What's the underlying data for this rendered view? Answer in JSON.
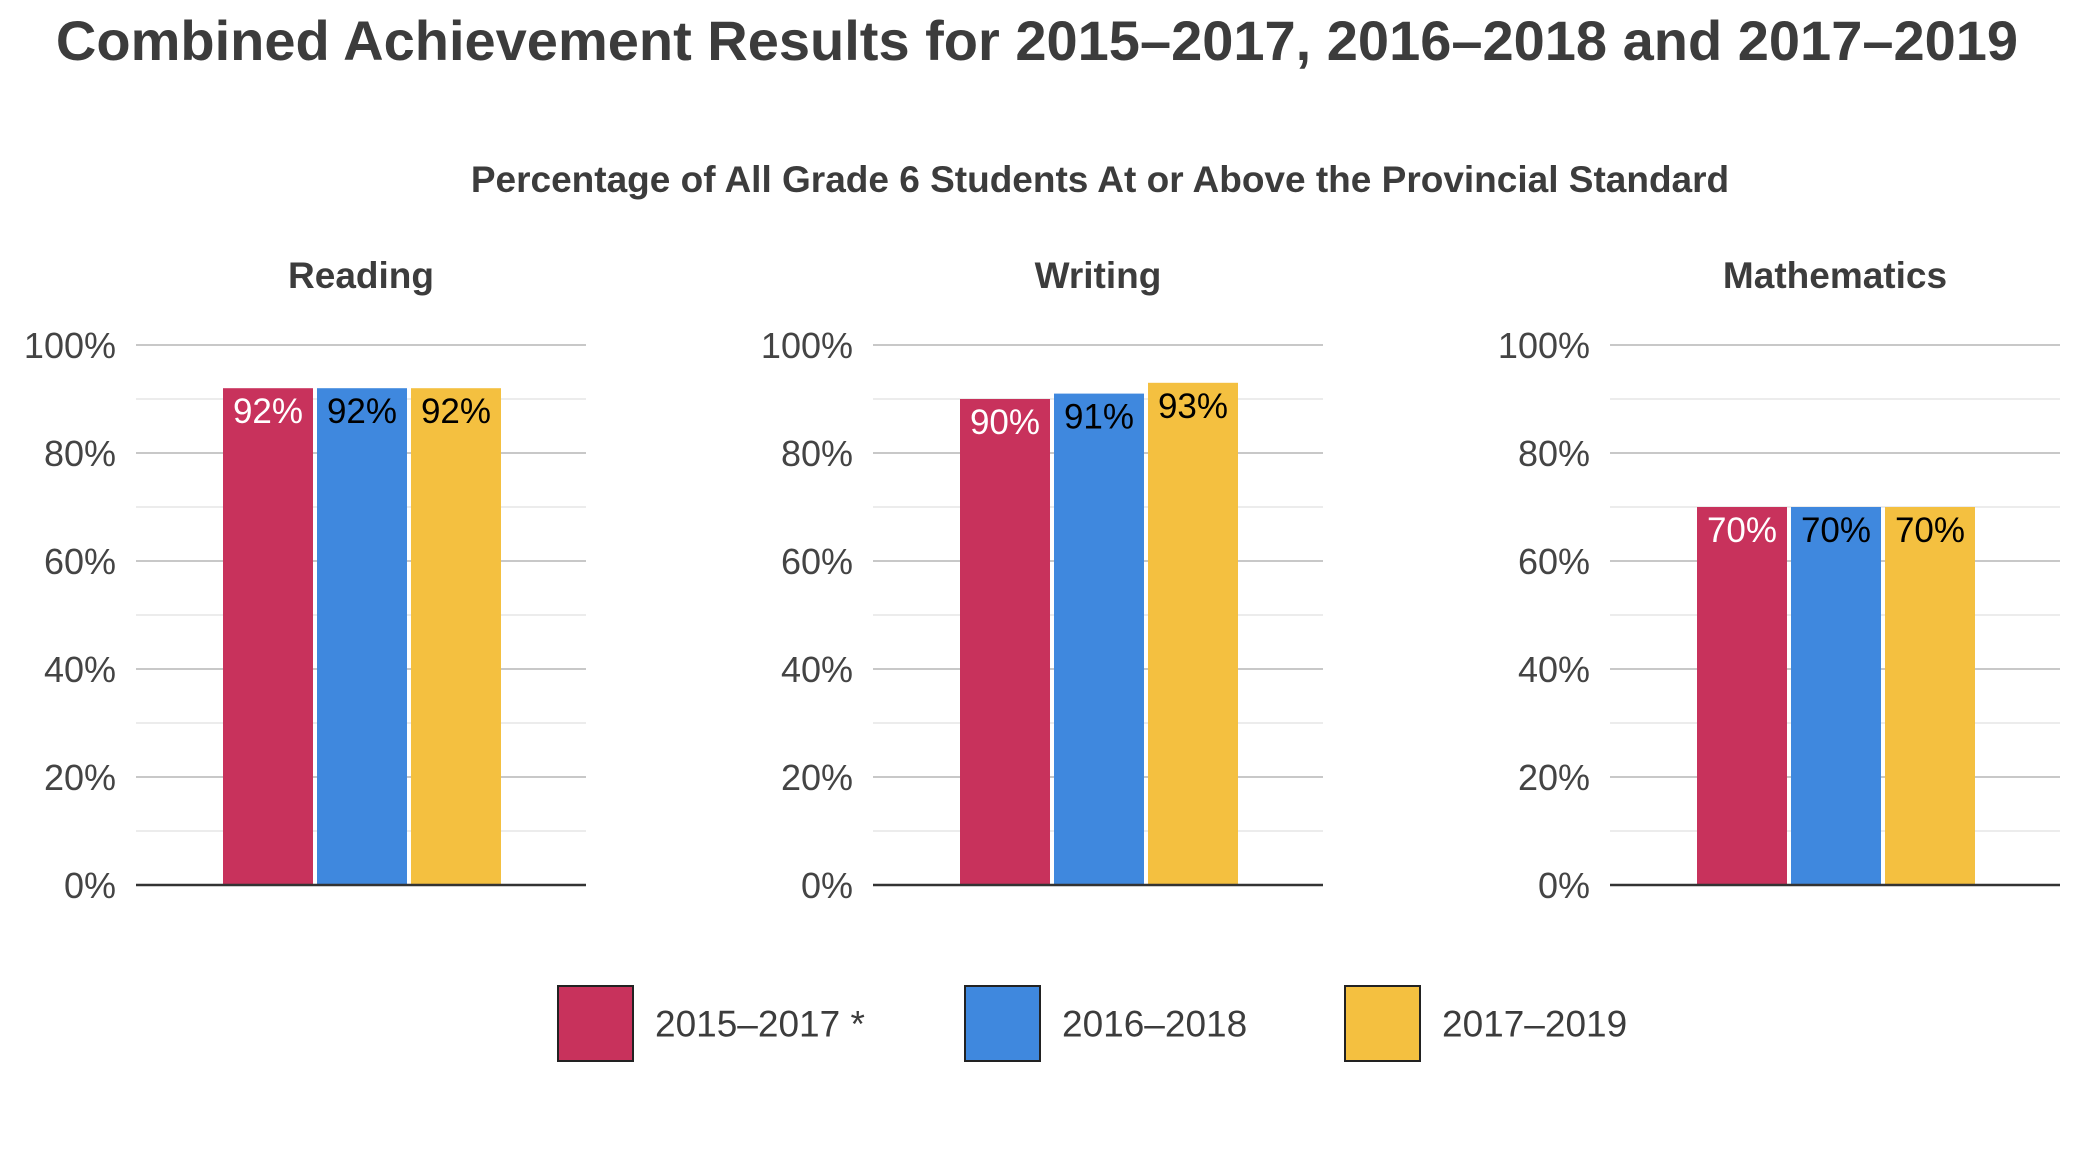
{
  "title": "Combined Achievement Results for 2015–2017, 2016–2018 and 2017–2019",
  "subtitle": "Percentage of All Grade 6 Students At or Above the Provincial Standard",
  "legend": {
    "placement": "bottom-center",
    "items": [
      {
        "label": "2015–2017 *",
        "color": "#c8325c"
      },
      {
        "label": "2016–2018",
        "color": "#3f88de"
      },
      {
        "label": "2017–2019",
        "color": "#f4c040"
      }
    ]
  },
  "chart_data": [
    {
      "type": "bar",
      "title": "Reading",
      "categories": [
        "Reading"
      ],
      "series": [
        {
          "name": "2015–2017 *",
          "values": [
            92
          ],
          "color": "#c8325c",
          "label_color": "#ffffff"
        },
        {
          "name": "2016–2018",
          "values": [
            92
          ],
          "color": "#3f88de",
          "label_color": "#000000"
        },
        {
          "name": "2017–2019",
          "values": [
            92
          ],
          "color": "#f4c040",
          "label_color": "#000000"
        }
      ],
      "data_labels": [
        "92%",
        "92%",
        "92%"
      ],
      "ylim": [
        0,
        100
      ],
      "yticks": [
        "0%",
        "20%",
        "40%",
        "60%",
        "80%",
        "100%"
      ],
      "grid": true
    },
    {
      "type": "bar",
      "title": "Writing",
      "categories": [
        "Writing"
      ],
      "series": [
        {
          "name": "2015–2017 *",
          "values": [
            90
          ],
          "color": "#c8325c",
          "label_color": "#ffffff"
        },
        {
          "name": "2016–2018",
          "values": [
            91
          ],
          "color": "#3f88de",
          "label_color": "#000000"
        },
        {
          "name": "2017–2019",
          "values": [
            93
          ],
          "color": "#f4c040",
          "label_color": "#000000"
        }
      ],
      "data_labels": [
        "90%",
        "91%",
        "93%"
      ],
      "ylim": [
        0,
        100
      ],
      "yticks": [
        "0%",
        "20%",
        "40%",
        "60%",
        "80%",
        "100%"
      ],
      "grid": true
    },
    {
      "type": "bar",
      "title": "Mathematics",
      "categories": [
        "Mathematics"
      ],
      "series": [
        {
          "name": "2015–2017 *",
          "values": [
            70
          ],
          "color": "#c8325c",
          "label_color": "#ffffff"
        },
        {
          "name": "2016–2018",
          "values": [
            70
          ],
          "color": "#3f88de",
          "label_color": "#000000"
        },
        {
          "name": "2017–2019",
          "values": [
            70
          ],
          "color": "#f4c040",
          "label_color": "#000000"
        }
      ],
      "data_labels": [
        "70%",
        "70%",
        "70%"
      ],
      "ylim": [
        0,
        100
      ],
      "yticks": [
        "0%",
        "20%",
        "40%",
        "60%",
        "80%",
        "100%"
      ],
      "grid": true
    }
  ]
}
